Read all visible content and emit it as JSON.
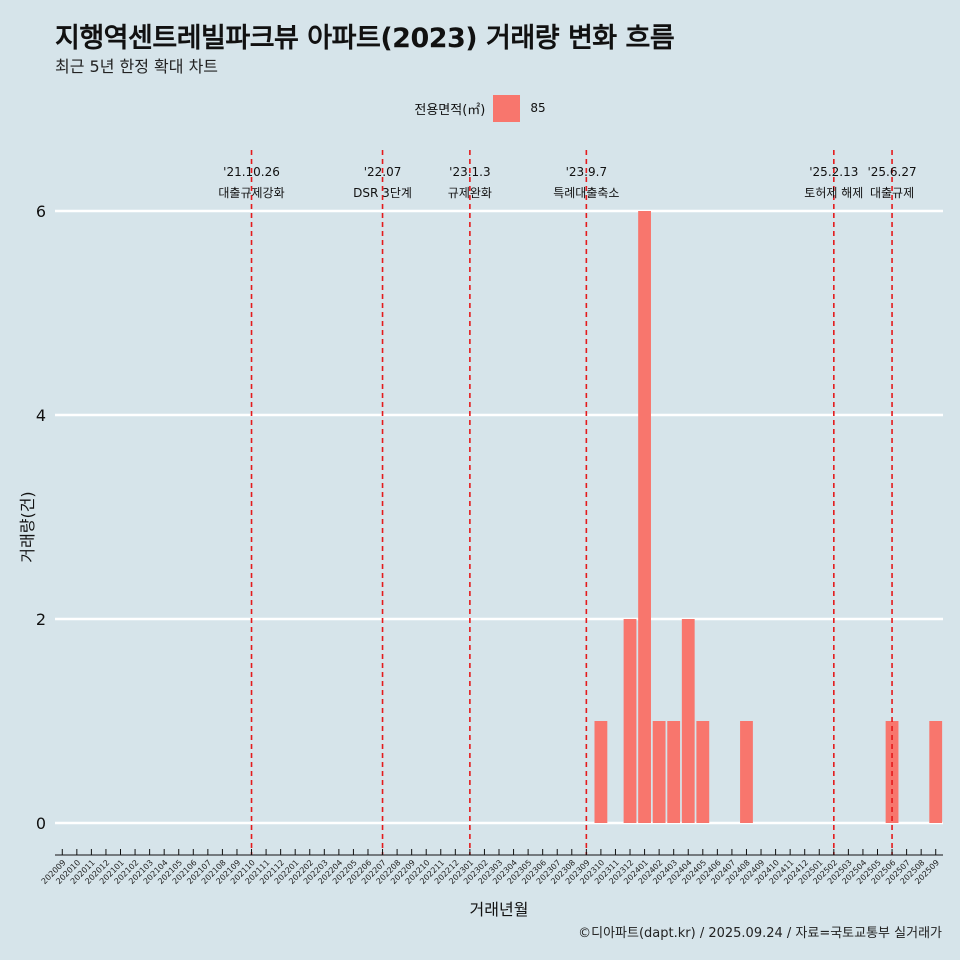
{
  "title": "지행역센트레빌파크뷰 아파트(2023) 거래량 변화 흐름",
  "subtitle": "최근 5년 한정 확대 차트",
  "legend": {
    "title": "전용면적(㎡)",
    "items": [
      {
        "label": "85",
        "color": "#f8766d"
      }
    ]
  },
  "caption": "©디아파트(dapt.kr) / 2025.09.24 / 자료=국토교통부 실거래가",
  "chart_data": {
    "type": "bar",
    "title": "지행역센트레빌파크뷰 아파트(2023) 거래량 변화 흐름",
    "xlabel": "거래년월",
    "ylabel": "거래량(건)",
    "ylim": [
      0,
      6
    ],
    "yticks": [
      0,
      2,
      4,
      6
    ],
    "categories": [
      "202009",
      "202010",
      "202011",
      "202012",
      "202101",
      "202102",
      "202103",
      "202104",
      "202105",
      "202106",
      "202107",
      "202108",
      "202109",
      "202110",
      "202111",
      "202112",
      "202201",
      "202202",
      "202203",
      "202204",
      "202205",
      "202206",
      "202207",
      "202208",
      "202209",
      "202210",
      "202211",
      "202212",
      "202301",
      "202302",
      "202303",
      "202304",
      "202305",
      "202306",
      "202307",
      "202308",
      "202309",
      "202310",
      "202311",
      "202312",
      "202401",
      "202402",
      "202403",
      "202404",
      "202405",
      "202406",
      "202407",
      "202408",
      "202409",
      "202410",
      "202411",
      "202412",
      "202501",
      "202502",
      "202503",
      "202504",
      "202505",
      "202506",
      "202507",
      "202508",
      "202509"
    ],
    "series": [
      {
        "name": "85",
        "color": "#f8766d",
        "values": [
          0,
          0,
          0,
          0,
          0,
          0,
          0,
          0,
          0,
          0,
          0,
          0,
          0,
          0,
          0,
          0,
          0,
          0,
          0,
          0,
          0,
          0,
          0,
          0,
          0,
          0,
          0,
          0,
          0,
          0,
          0,
          0,
          0,
          0,
          0,
          0,
          0,
          1,
          0,
          2,
          6,
          1,
          1,
          2,
          1,
          0,
          0,
          1,
          0,
          0,
          0,
          0,
          0,
          0,
          0,
          0,
          0,
          1,
          0,
          0,
          1
        ]
      }
    ],
    "events": [
      {
        "date": "'21.10.26",
        "label": "대출규제강화",
        "category": "202110"
      },
      {
        "date": "'22.07",
        "label": "DSR 3단계",
        "category": "202207"
      },
      {
        "date": "'23.1.3",
        "label": "규제완화",
        "category": "202301"
      },
      {
        "date": "'23.9.7",
        "label": "특례대출축소",
        "category": "202309"
      },
      {
        "date": "'25.2.13",
        "label": "토허제 해제",
        "category": "202502"
      },
      {
        "date": "'25.6.27",
        "label": "대출규제",
        "category": "202506"
      }
    ]
  }
}
